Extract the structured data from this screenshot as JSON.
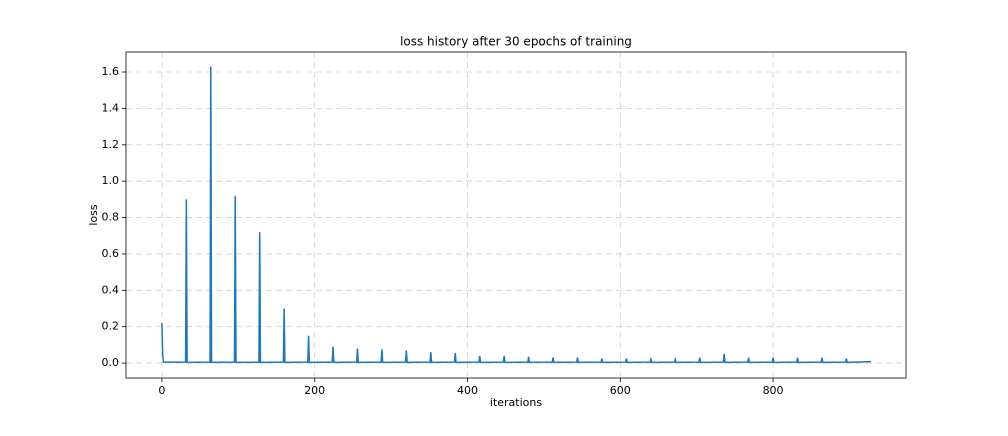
{
  "chart_data": {
    "type": "line",
    "title": "loss history after 30 epochs of training",
    "x_label": "iterations",
    "y_label": "loss",
    "x": [
      0,
      1,
      2,
      31,
      32,
      33,
      63,
      64,
      65,
      95,
      96,
      97,
      127,
      128,
      129,
      159,
      160,
      161,
      191,
      192,
      193,
      223,
      224,
      225,
      255,
      256,
      257,
      287,
      288,
      289,
      319,
      320,
      321,
      351,
      352,
      353,
      383,
      384,
      385,
      415,
      416,
      417,
      447,
      448,
      449,
      479,
      480,
      481,
      511,
      512,
      513,
      543,
      544,
      545,
      575,
      576,
      577,
      607,
      608,
      609,
      639,
      640,
      641,
      671,
      672,
      673,
      703,
      704,
      705,
      735,
      736,
      737,
      767,
      768,
      769,
      799,
      800,
      801,
      831,
      832,
      833,
      863,
      864,
      865,
      895,
      896,
      897,
      928
    ],
    "series": [
      {
        "color": "#1f77b4",
        "values": [
          0.22,
          0.05,
          0.005,
          0.005,
          0.9,
          0.004,
          0.005,
          1.63,
          0.004,
          0.005,
          0.92,
          0.004,
          0.005,
          0.72,
          0.004,
          0.005,
          0.3,
          0.004,
          0.005,
          0.15,
          0.004,
          0.005,
          0.09,
          0.004,
          0.005,
          0.08,
          0.004,
          0.005,
          0.075,
          0.004,
          0.005,
          0.07,
          0.004,
          0.005,
          0.06,
          0.004,
          0.005,
          0.055,
          0.004,
          0.005,
          0.04,
          0.004,
          0.005,
          0.04,
          0.004,
          0.005,
          0.035,
          0.004,
          0.005,
          0.03,
          0.004,
          0.005,
          0.03,
          0.004,
          0.005,
          0.025,
          0.004,
          0.005,
          0.025,
          0.004,
          0.005,
          0.02,
          0.004,
          0.005,
          0.02,
          0.004,
          0.005,
          0.03,
          0.004,
          0.005,
          0.05,
          0.004,
          0.005,
          0.03,
          0.004,
          0.005,
          0.03,
          0.004,
          0.005,
          0.03,
          0.004,
          0.005,
          0.03,
          0.004,
          0.005,
          0.025,
          0.004,
          0.008
        ]
      }
    ],
    "xlim": [
      -47,
      974
    ],
    "ylim": [
      -0.082,
      1.71
    ],
    "xticks": [
      0,
      200,
      400,
      600,
      800
    ],
    "yticks": [
      {
        "value": 0,
        "label": "0.0"
      },
      0.2,
      0.4,
      0.6,
      0.8,
      {
        "value": 1,
        "label": "1.0"
      },
      1.2,
      1.4,
      1.6
    ],
    "grid": true
  }
}
